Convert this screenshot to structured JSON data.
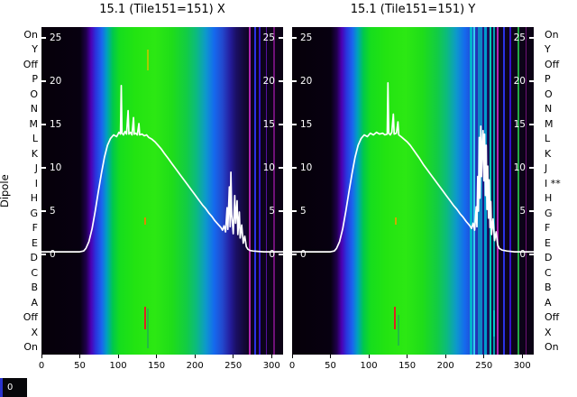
{
  "y_axis_label": "Dipole",
  "dipole_labels_left": [
    "On",
    "Y",
    "Off",
    "P",
    "O",
    "N",
    "M",
    "L",
    "K",
    "J",
    "I",
    "H",
    "G",
    "F",
    "E",
    "D",
    "C",
    "B",
    "A",
    "Off",
    "X",
    "On"
  ],
  "dipole_labels_right": [
    "On",
    "Y",
    "Off",
    "P",
    "O",
    "N",
    "M",
    "L",
    "K",
    "J",
    "I **",
    "H",
    "G",
    "F",
    "E",
    "D",
    "C",
    "B",
    "A",
    "Off",
    "X",
    "On"
  ],
  "corner_box_label": "0",
  "chart_data": [
    {
      "type": "heatmap",
      "title": "15.1 (Tile151=151) X",
      "x_ticks": [
        0,
        50,
        100,
        150,
        200,
        250,
        300
      ],
      "inner_y_ticks": [
        25,
        20,
        15,
        10,
        5,
        0
      ],
      "x_range": [
        0,
        315
      ],
      "y_range": [
        -11.6,
        26.3
      ],
      "line_color": "#ffffff",
      "line_points": [
        [
          0,
          0.3
        ],
        [
          30,
          0.3
        ],
        [
          50,
          0.3
        ],
        [
          55,
          0.4
        ],
        [
          58,
          0.7
        ],
        [
          62,
          1.5
        ],
        [
          66,
          3
        ],
        [
          70,
          5
        ],
        [
          74,
          7.2
        ],
        [
          78,
          9.3
        ],
        [
          82,
          11.2
        ],
        [
          86,
          12.6
        ],
        [
          90,
          13.4
        ],
        [
          94,
          13.8
        ],
        [
          98,
          13.6
        ],
        [
          101,
          14.1
        ],
        [
          103,
          13.9
        ],
        [
          104,
          19.5
        ],
        [
          105,
          14.0
        ],
        [
          107,
          13.8
        ],
        [
          109,
          14.2
        ],
        [
          111,
          13.9
        ],
        [
          113,
          16.6
        ],
        [
          114,
          13.9
        ],
        [
          116,
          14.1
        ],
        [
          118,
          13.8
        ],
        [
          120,
          15.8
        ],
        [
          121,
          13.9
        ],
        [
          123,
          14.0
        ],
        [
          125,
          13.8
        ],
        [
          127,
          15.1
        ],
        [
          128,
          13.8
        ],
        [
          131,
          13.9
        ],
        [
          134,
          13.7
        ],
        [
          137,
          13.8
        ],
        [
          140,
          13.5
        ],
        [
          144,
          13.3
        ],
        [
          148,
          13.0
        ],
        [
          152,
          12.6
        ],
        [
          156,
          12.2
        ],
        [
          160,
          11.7
        ],
        [
          165,
          11.1
        ],
        [
          170,
          10.5
        ],
        [
          175,
          9.9
        ],
        [
          180,
          9.3
        ],
        [
          185,
          8.7
        ],
        [
          190,
          8.1
        ],
        [
          195,
          7.5
        ],
        [
          200,
          6.9
        ],
        [
          205,
          6.3
        ],
        [
          210,
          5.7
        ],
        [
          214,
          5.3
        ],
        [
          218,
          4.8
        ],
        [
          222,
          4.4
        ],
        [
          226,
          3.9
        ],
        [
          230,
          3.5
        ],
        [
          234,
          3.1
        ],
        [
          236,
          2.8
        ],
        [
          238,
          3.3
        ],
        [
          240,
          2.6
        ],
        [
          242,
          5.4
        ],
        [
          243,
          2.9
        ],
        [
          245,
          7.8
        ],
        [
          246,
          3.2
        ],
        [
          247,
          9.5
        ],
        [
          248,
          4.6
        ],
        [
          250,
          2.4
        ],
        [
          252,
          6.8
        ],
        [
          253,
          3.6
        ],
        [
          255,
          6.2
        ],
        [
          256,
          2.3
        ],
        [
          258,
          4.9
        ],
        [
          259,
          1.9
        ],
        [
          261,
          3.4
        ],
        [
          263,
          1.3
        ],
        [
          265,
          2.1
        ],
        [
          267,
          0.9
        ],
        [
          269,
          0.6
        ],
        [
          272,
          0.45
        ],
        [
          276,
          0.4
        ],
        [
          282,
          0.35
        ],
        [
          290,
          0.3
        ],
        [
          300,
          0.3
        ],
        [
          315,
          0.3
        ]
      ],
      "heatmap_gradient": [
        {
          "p": 0,
          "c": "#060009"
        },
        {
          "p": 16,
          "c": "#070010"
        },
        {
          "p": 18.5,
          "c": "#20004d"
        },
        {
          "p": 20.5,
          "c": "#4b00b3"
        },
        {
          "p": 22.5,
          "c": "#2a33dd"
        },
        {
          "p": 25,
          "c": "#1a66ee"
        },
        {
          "p": 27,
          "c": "#00a0c0"
        },
        {
          "p": 29.5,
          "c": "#00c84d"
        },
        {
          "p": 32.5,
          "c": "#16dd1d"
        },
        {
          "p": 39,
          "c": "#23e411"
        },
        {
          "p": 47,
          "c": "#2ce813"
        },
        {
          "p": 54,
          "c": "#1fdd19"
        },
        {
          "p": 60,
          "c": "#12cc44"
        },
        {
          "p": 64,
          "c": "#0cbb7d"
        },
        {
          "p": 68,
          "c": "#0d99cc"
        },
        {
          "p": 71.5,
          "c": "#1569ee"
        },
        {
          "p": 75,
          "c": "#2347cc"
        },
        {
          "p": 78,
          "c": "#241e9e"
        },
        {
          "p": 80.5,
          "c": "#1b0f66"
        },
        {
          "p": 83,
          "c": "#150a44"
        },
        {
          "p": 86,
          "c": "#0e051f"
        },
        {
          "p": 100,
          "c": "#0b0214"
        }
      ],
      "stripes": [
        {
          "x": 271,
          "w": 2,
          "c": "#b326b3"
        },
        {
          "x": 278,
          "w": 2,
          "c": "#2a33e6"
        },
        {
          "x": 285,
          "w": 2,
          "c": "#3313cc"
        },
        {
          "x": 293,
          "w": 1,
          "c": "#55119e"
        },
        {
          "x": 303,
          "w": 2,
          "c": "#6e1177"
        }
      ],
      "artifacts": [
        {
          "x": 139,
          "v1": 21.3,
          "v2": 23.6,
          "w": 2,
          "c": "#a8cc00"
        },
        {
          "x": 135,
          "v1": 3.4,
          "v2": 4.3,
          "w": 2,
          "c": "#dd8800"
        },
        {
          "x": 135,
          "v1": -6.0,
          "v2": -8.6,
          "w": 2,
          "c": "#dd2222"
        },
        {
          "x": 139,
          "v1": -6.3,
          "v2": -10.8,
          "w": 2,
          "c": "#22bb44"
        }
      ]
    },
    {
      "type": "heatmap",
      "title": "15.1 (Tile151=151) Y",
      "x_ticks": [
        0,
        50,
        100,
        150,
        200,
        250,
        300
      ],
      "inner_y_ticks": [
        25,
        20,
        15,
        10,
        5,
        0
      ],
      "x_range": [
        0,
        315
      ],
      "y_range": [
        -11.6,
        26.3
      ],
      "line_color": "#ffffff",
      "line_points": [
        [
          0,
          0.3
        ],
        [
          30,
          0.3
        ],
        [
          50,
          0.3
        ],
        [
          55,
          0.4
        ],
        [
          58,
          0.7
        ],
        [
          62,
          1.5
        ],
        [
          66,
          3
        ],
        [
          70,
          5
        ],
        [
          74,
          7.2
        ],
        [
          78,
          9.3
        ],
        [
          82,
          11.2
        ],
        [
          86,
          12.6
        ],
        [
          90,
          13.4
        ],
        [
          94,
          13.8
        ],
        [
          98,
          13.6
        ],
        [
          102,
          14.0
        ],
        [
          106,
          13.8
        ],
        [
          110,
          14.1
        ],
        [
          114,
          13.9
        ],
        [
          118,
          14.0
        ],
        [
          121,
          13.8
        ],
        [
          124,
          13.9
        ],
        [
          125,
          19.8
        ],
        [
          126,
          14.0
        ],
        [
          128,
          13.8
        ],
        [
          130,
          14.1
        ],
        [
          132,
          16.2
        ],
        [
          133,
          13.9
        ],
        [
          136,
          14.0
        ],
        [
          138,
          15.3
        ],
        [
          139,
          13.8
        ],
        [
          142,
          13.6
        ],
        [
          146,
          13.3
        ],
        [
          150,
          13.0
        ],
        [
          154,
          12.6
        ],
        [
          158,
          12.1
        ],
        [
          162,
          11.6
        ],
        [
          166,
          11.1
        ],
        [
          171,
          10.4
        ],
        [
          176,
          9.8
        ],
        [
          181,
          9.2
        ],
        [
          186,
          8.6
        ],
        [
          191,
          8.0
        ],
        [
          196,
          7.4
        ],
        [
          201,
          6.8
        ],
        [
          206,
          6.2
        ],
        [
          211,
          5.6
        ],
        [
          215,
          5.2
        ],
        [
          219,
          4.7
        ],
        [
          223,
          4.3
        ],
        [
          227,
          3.8
        ],
        [
          231,
          3.4
        ],
        [
          234,
          3.0
        ],
        [
          236,
          3.6
        ],
        [
          238,
          2.8
        ],
        [
          240,
          5.5
        ],
        [
          241,
          3.2
        ],
        [
          242,
          9.0
        ],
        [
          243,
          5.0
        ],
        [
          244,
          13.5
        ],
        [
          245,
          6.5
        ],
        [
          246,
          14.8
        ],
        [
          247,
          9.0
        ],
        [
          248,
          12.5
        ],
        [
          249,
          14.3
        ],
        [
          250,
          8.5
        ],
        [
          251,
          13.9
        ],
        [
          252,
          6.8
        ],
        [
          253,
          12.6
        ],
        [
          254,
          5.2
        ],
        [
          255,
          10.2
        ],
        [
          256,
          4.2
        ],
        [
          257,
          8.6
        ],
        [
          258,
          3.1
        ],
        [
          259,
          6.1
        ],
        [
          260,
          2.3
        ],
        [
          262,
          4.1
        ],
        [
          264,
          1.6
        ],
        [
          266,
          2.6
        ],
        [
          268,
          1.1
        ],
        [
          270,
          0.7
        ],
        [
          274,
          0.5
        ],
        [
          280,
          0.4
        ],
        [
          290,
          0.3
        ],
        [
          300,
          0.3
        ],
        [
          315,
          0.3
        ]
      ],
      "heatmap_gradient": [
        {
          "p": 0,
          "c": "#060009"
        },
        {
          "p": 16,
          "c": "#070010"
        },
        {
          "p": 18.5,
          "c": "#20004d"
        },
        {
          "p": 20.5,
          "c": "#4b00b3"
        },
        {
          "p": 22.5,
          "c": "#2a33dd"
        },
        {
          "p": 25,
          "c": "#1a66ee"
        },
        {
          "p": 27,
          "c": "#00a0c0"
        },
        {
          "p": 29.5,
          "c": "#00c84d"
        },
        {
          "p": 32.5,
          "c": "#16dd1d"
        },
        {
          "p": 39,
          "c": "#23e411"
        },
        {
          "p": 47,
          "c": "#2ce813"
        },
        {
          "p": 54,
          "c": "#1fdd19"
        },
        {
          "p": 60,
          "c": "#12cc44"
        },
        {
          "p": 64,
          "c": "#0cbb7d"
        },
        {
          "p": 68,
          "c": "#0d99cc"
        },
        {
          "p": 71.5,
          "c": "#1569ee"
        },
        {
          "p": 75,
          "c": "#2347cc"
        },
        {
          "p": 78,
          "c": "#241e9e"
        },
        {
          "p": 80.5,
          "c": "#1b0f66"
        },
        {
          "p": 83,
          "c": "#150a44"
        },
        {
          "p": 86,
          "c": "#0e051f"
        },
        {
          "p": 100,
          "c": "#0b0214"
        }
      ],
      "stripes": [
        {
          "x": 233,
          "w": 3,
          "c": "#00b3cc"
        },
        {
          "x": 238,
          "w": 2,
          "c": "#33ccee"
        },
        {
          "x": 245,
          "w": 5,
          "c": "#0d86c4"
        },
        {
          "x": 252,
          "w": 3,
          "c": "#0099cc"
        },
        {
          "x": 258,
          "w": 2,
          "c": "#00ccb3"
        },
        {
          "x": 263,
          "w": 2,
          "c": "#00a0b0"
        },
        {
          "x": 268,
          "w": 2,
          "c": "#b326b3"
        },
        {
          "x": 276,
          "w": 2,
          "c": "#2a33e6"
        },
        {
          "x": 285,
          "w": 2,
          "c": "#3313cc"
        },
        {
          "x": 295,
          "w": 2,
          "c": "#22aa44"
        },
        {
          "x": 305,
          "w": 1,
          "c": "#6e1177"
        }
      ],
      "artifacts": [
        {
          "x": 135,
          "v1": 3.4,
          "v2": 4.3,
          "w": 2,
          "c": "#ccaa00"
        },
        {
          "x": 134,
          "v1": -6.0,
          "v2": -8.6,
          "w": 2,
          "c": "#dd2222"
        },
        {
          "x": 139,
          "v1": -7.0,
          "v2": -10.5,
          "w": 2,
          "c": "#22bb44"
        },
        {
          "x": 263,
          "v1": -6.5,
          "v2": -9.5,
          "w": 2,
          "c": "#00cccc"
        }
      ]
    }
  ]
}
